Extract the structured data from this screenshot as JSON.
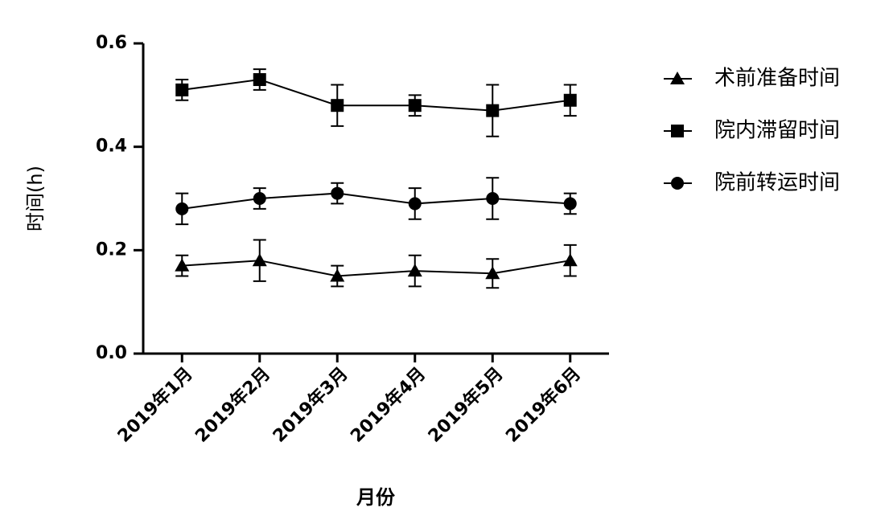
{
  "chart_data": {
    "type": "line",
    "xlabel": "月份",
    "ylabel": "时间(h)",
    "categories": [
      "2019年1月",
      "2019年2月",
      "2019年3月",
      "2019年4月",
      "2019年5月",
      "2019年6月"
    ],
    "series": [
      {
        "name": "术前准备时间",
        "color": "#000000",
        "marker": "triangle",
        "values": [
          0.17,
          0.18,
          0.15,
          0.16,
          0.155,
          0.18
        ],
        "errors": [
          0.02,
          0.04,
          0.02,
          0.03,
          0.028,
          0.03
        ]
      },
      {
        "name": "院内滞留时间",
        "color": "#000000",
        "marker": "square",
        "values": [
          0.51,
          0.53,
          0.48,
          0.48,
          0.47,
          0.49
        ],
        "errors": [
          0.02,
          0.02,
          0.04,
          0.02,
          0.05,
          0.03
        ]
      },
      {
        "name": "院前转运时间",
        "color": "#000000",
        "marker": "circle",
        "values": [
          0.28,
          0.3,
          0.31,
          0.29,
          0.3,
          0.29
        ],
        "errors": [
          0.03,
          0.02,
          0.02,
          0.03,
          0.04,
          0.02
        ]
      }
    ],
    "ylim": [
      0,
      0.6
    ],
    "yticks": [
      {
        "value": 0,
        "label": "0.0"
      },
      0.2,
      0.4,
      0.6
    ],
    "grid": false
  }
}
